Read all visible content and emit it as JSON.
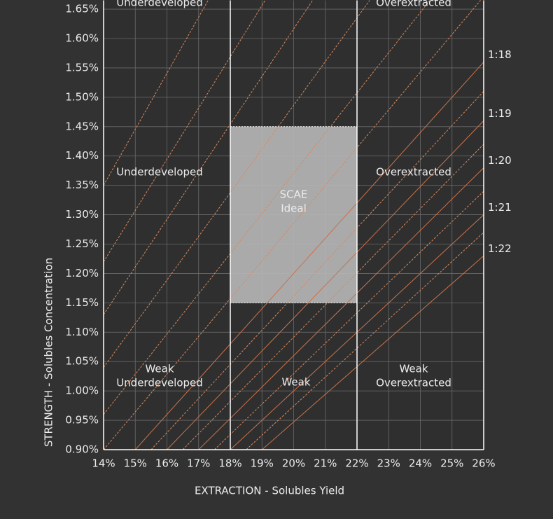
{
  "chart_data": {
    "type": "line",
    "x_label": "EXTRACTION - Solubles Yield",
    "y_label": "STRENGTH - Solubles Concentration",
    "xlim": [
      14,
      26
    ],
    "ylim": [
      0.9,
      1.665
    ],
    "xticks": [
      {
        "value": 14,
        "label": "14%"
      },
      {
        "value": 15,
        "label": "15%"
      },
      {
        "value": 16,
        "label": "16%"
      },
      {
        "value": 17,
        "label": "17%"
      },
      {
        "value": 18,
        "label": "18%"
      },
      {
        "value": 19,
        "label": "19%"
      },
      {
        "value": 20,
        "label": "20%"
      },
      {
        "value": 21,
        "label": "21%"
      },
      {
        "value": 22,
        "label": "22%"
      },
      {
        "value": 23,
        "label": "23%"
      },
      {
        "value": 24,
        "label": "24%"
      },
      {
        "value": 25,
        "label": "25%"
      },
      {
        "value": 26,
        "label": "26%"
      }
    ],
    "yticks": [
      {
        "value": 0.9,
        "label": "0.90%"
      },
      {
        "value": 0.95,
        "label": "0.95%"
      },
      {
        "value": 1.0,
        "label": "1.00%"
      },
      {
        "value": 1.05,
        "label": "1.05%"
      },
      {
        "value": 1.1,
        "label": "1.10%"
      },
      {
        "value": 1.15,
        "label": "1.15%"
      },
      {
        "value": 1.2,
        "label": "1.20%"
      },
      {
        "value": 1.25,
        "label": "1.25%"
      },
      {
        "value": 1.3,
        "label": "1.30%"
      },
      {
        "value": 1.35,
        "label": "1.35%"
      },
      {
        "value": 1.4,
        "label": "1.40%"
      },
      {
        "value": 1.45,
        "label": "1.45%"
      },
      {
        "value": 1.5,
        "label": "1.50%"
      },
      {
        "value": 1.55,
        "label": "1.55%"
      },
      {
        "value": 1.6,
        "label": "1.60%"
      },
      {
        "value": 1.65,
        "label": "1.65%"
      }
    ],
    "grid": true,
    "zone_bounds": [
      18,
      22
    ],
    "ideal": {
      "x": [
        18,
        22
      ],
      "y": [
        1.15,
        1.45
      ],
      "lines": [
        "SCAE",
        "Ideal"
      ]
    },
    "zone_labels": [
      {
        "lines": [
          "Underdeveloped"
        ]
      },
      {
        "lines": [
          "Overextracted"
        ]
      },
      {
        "lines": [
          "Underdeveloped"
        ]
      },
      {
        "lines": [
          "Overextracted"
        ]
      },
      {
        "lines": [
          "Weak",
          "Underdeveloped"
        ]
      },
      {
        "lines": [
          "Weak"
        ]
      },
      {
        "lines": [
          "Weak",
          "Overextracted"
        ]
      }
    ],
    "series": [
      {
        "name": "1:18",
        "color": "#c8734c",
        "dashed": false,
        "x": [
          15,
          26
        ],
        "values": [
          0.9,
          1.56
        ]
      },
      {
        "name": "1:19",
        "color": "#c8734c",
        "dashed": false,
        "x": [
          16,
          26
        ],
        "values": [
          0.9,
          1.46
        ]
      },
      {
        "name": "1:20",
        "color": "#c8734c",
        "dashed": false,
        "x": [
          17,
          26
        ],
        "values": [
          0.9,
          1.38
        ]
      },
      {
        "name": "1:21",
        "color": "#c8734c",
        "dashed": false,
        "x": [
          18,
          26
        ],
        "values": [
          0.9,
          1.3
        ]
      },
      {
        "name": "1:22",
        "color": "#c8734c",
        "dashed": false,
        "x": [
          19,
          26
        ],
        "values": [
          0.9,
          1.23
        ]
      },
      {
        "color": "#d88a5f",
        "dashed": true,
        "x": [
          14,
          25.9
        ],
        "values": [
          0.9,
          1.665
        ]
      },
      {
        "color": "#d88a5f",
        "dashed": true,
        "x": [
          15.5,
          26
        ],
        "values": [
          0.9,
          1.51
        ]
      },
      {
        "color": "#d88a5f",
        "dashed": true,
        "x": [
          16.5,
          26
        ],
        "values": [
          0.9,
          1.42
        ]
      },
      {
        "color": "#d88a5f",
        "dashed": true,
        "x": [
          17.5,
          26
        ],
        "values": [
          0.9,
          1.34
        ]
      },
      {
        "color": "#d88a5f",
        "dashed": true,
        "x": [
          18.5,
          26
        ],
        "values": [
          0.9,
          1.27
        ]
      },
      {
        "color": "#d88a5f",
        "dashed": true,
        "x": [
          14,
          24.3
        ],
        "values": [
          0.96,
          1.665
        ]
      },
      {
        "color": "#d88a5f",
        "dashed": true,
        "x": [
          14,
          22.4
        ],
        "values": [
          1.04,
          1.665
        ]
      },
      {
        "color": "#d88a5f",
        "dashed": true,
        "x": [
          14,
          20.6
        ],
        "values": [
          1.13,
          1.665
        ]
      },
      {
        "color": "#d88a5f",
        "dashed": true,
        "x": [
          14,
          19.1
        ],
        "values": [
          1.22,
          1.665
        ]
      },
      {
        "color": "#d88a5f",
        "dashed": true,
        "x": [
          14,
          17.3
        ],
        "values": [
          1.35,
          1.665
        ]
      }
    ]
  }
}
